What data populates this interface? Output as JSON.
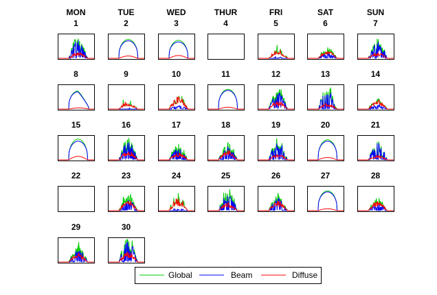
{
  "chart_data": {
    "type": "line",
    "title": "",
    "day_headers": [
      "MON",
      "TUE",
      "WED",
      "THUR",
      "FRI",
      "SAT",
      "SUN"
    ],
    "days": [
      {
        "day": 1,
        "global_peak": 0.95,
        "beam_peak": 0.8,
        "diffuse_peak": 0.25,
        "profile": "spiky"
      },
      {
        "day": 2,
        "global_peak": 0.8,
        "beam_peak": 0.75,
        "diffuse_peak": 0.1,
        "profile": "clear"
      },
      {
        "day": 3,
        "global_peak": 0.8,
        "beam_peak": 0.7,
        "diffuse_peak": 0.12,
        "profile": "clear"
      },
      {
        "day": 4,
        "global_peak": 0.0,
        "beam_peak": 0.0,
        "diffuse_peak": 0.0,
        "profile": "empty"
      },
      {
        "day": 5,
        "global_peak": 0.4,
        "beam_peak": 0.1,
        "diffuse_peak": 0.3,
        "profile": "cloudy"
      },
      {
        "day": 6,
        "global_peak": 0.55,
        "beam_peak": 0.25,
        "diffuse_peak": 0.35,
        "profile": "spiky"
      },
      {
        "day": 7,
        "global_peak": 0.9,
        "beam_peak": 0.75,
        "diffuse_peak": 0.25,
        "profile": "spiky"
      },
      {
        "day": 8,
        "global_peak": 0.8,
        "beam_peak": 0.75,
        "diffuse_peak": 0.05,
        "profile": "afternoon"
      },
      {
        "day": 9,
        "global_peak": 0.25,
        "beam_peak": 0.05,
        "diffuse_peak": 0.25,
        "profile": "cloudy"
      },
      {
        "day": 10,
        "global_peak": 0.8,
        "beam_peak": 0.15,
        "diffuse_peak": 0.55,
        "profile": "spiky"
      },
      {
        "day": 11,
        "global_peak": 0.85,
        "beam_peak": 0.8,
        "diffuse_peak": 0.08,
        "profile": "clear"
      },
      {
        "day": 12,
        "global_peak": 0.85,
        "beam_peak": 0.75,
        "diffuse_peak": 0.35,
        "profile": "spiky"
      },
      {
        "day": 13,
        "global_peak": 0.95,
        "beam_peak": 0.85,
        "diffuse_peak": 0.25,
        "profile": "spiky"
      },
      {
        "day": 14,
        "global_peak": 0.65,
        "beam_peak": 0.2,
        "diffuse_peak": 0.4,
        "profile": "spiky"
      },
      {
        "day": 15,
        "global_peak": 0.95,
        "beam_peak": 0.8,
        "diffuse_peak": 0.15,
        "profile": "clear"
      },
      {
        "day": 16,
        "global_peak": 0.95,
        "beam_peak": 0.8,
        "diffuse_peak": 0.4,
        "profile": "spiky"
      },
      {
        "day": 17,
        "global_peak": 0.7,
        "beam_peak": 0.5,
        "diffuse_peak": 0.3,
        "profile": "spiky"
      },
      {
        "day": 18,
        "global_peak": 0.9,
        "beam_peak": 0.6,
        "diffuse_peak": 0.4,
        "profile": "spiky"
      },
      {
        "day": 19,
        "global_peak": 0.95,
        "beam_peak": 0.8,
        "diffuse_peak": 0.25,
        "profile": "spiky"
      },
      {
        "day": 20,
        "global_peak": 0.85,
        "beam_peak": 0.8,
        "diffuse_peak": 0.1,
        "profile": "clear"
      },
      {
        "day": 21,
        "global_peak": 0.85,
        "beam_peak": 0.75,
        "diffuse_peak": 0.2,
        "profile": "spiky"
      },
      {
        "day": 22,
        "global_peak": 0.0,
        "beam_peak": 0.0,
        "diffuse_peak": 0.0,
        "profile": "empty"
      },
      {
        "day": 23,
        "global_peak": 0.95,
        "beam_peak": 0.5,
        "diffuse_peak": 0.45,
        "profile": "spiky"
      },
      {
        "day": 24,
        "global_peak": 0.55,
        "beam_peak": 0.1,
        "diffuse_peak": 0.4,
        "profile": "cloudy"
      },
      {
        "day": 25,
        "global_peak": 0.95,
        "beam_peak": 0.75,
        "diffuse_peak": 0.35,
        "profile": "spiky"
      },
      {
        "day": 26,
        "global_peak": 0.95,
        "beam_peak": 0.55,
        "diffuse_peak": 0.4,
        "profile": "spiky"
      },
      {
        "day": 27,
        "global_peak": 0.85,
        "beam_peak": 0.8,
        "diffuse_peak": 0.08,
        "profile": "clear"
      },
      {
        "day": 28,
        "global_peak": 0.7,
        "beam_peak": 0.3,
        "diffuse_peak": 0.4,
        "profile": "spiky"
      },
      {
        "day": 29,
        "global_peak": 0.95,
        "beam_peak": 0.6,
        "diffuse_peak": 0.4,
        "profile": "spiky"
      },
      {
        "day": 30,
        "global_peak": 0.98,
        "beam_peak": 0.9,
        "diffuse_peak": 0.45,
        "profile": "spiky"
      }
    ],
    "series": [
      {
        "name": "Global",
        "color": "#00cc00"
      },
      {
        "name": "Beam",
        "color": "#0000ff"
      },
      {
        "name": "Diffuse",
        "color": "#ff0000"
      }
    ],
    "legend_position": "bottom-center",
    "grid": false
  }
}
